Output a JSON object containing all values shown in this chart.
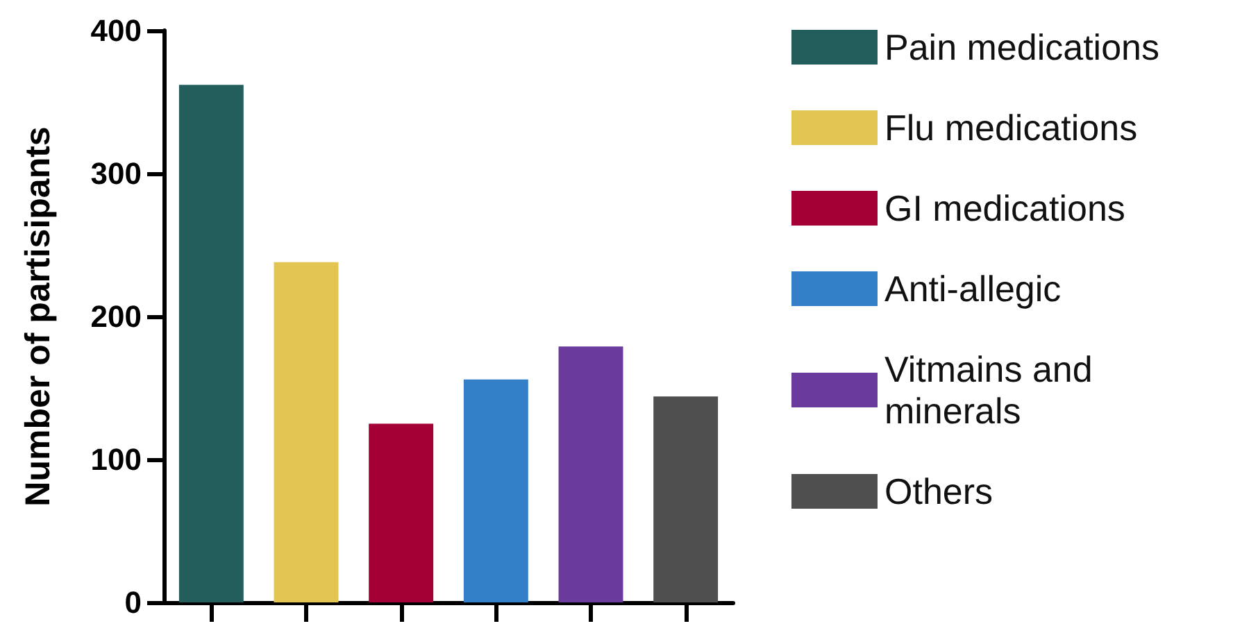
{
  "chart_data": {
    "type": "bar",
    "ylabel": "Number of partisipants",
    "categories": [
      null,
      null,
      null,
      null,
      null,
      null
    ],
    "series": [
      {
        "name": "Pain medications",
        "color": "#245e5c",
        "values": [
          362,
          null,
          null,
          null,
          null,
          null
        ]
      },
      {
        "name": "Flu medications",
        "color": "#e3c551",
        "values": [
          null,
          238,
          null,
          null,
          null,
          null
        ]
      },
      {
        "name": "GI medications",
        "color": "#a50036",
        "values": [
          null,
          null,
          125,
          null,
          null,
          null
        ]
      },
      {
        "name": "Anti-allegic",
        "color": "#3480c8",
        "values": [
          null,
          null,
          null,
          156,
          null,
          null
        ]
      },
      {
        "name": "Vitmains and minerals",
        "color": "#6a3a9c",
        "values": [
          null,
          null,
          null,
          null,
          179,
          null
        ]
      },
      {
        "name": "Others",
        "color": "#4f4f4f",
        "values": [
          null,
          null,
          null,
          null,
          null,
          144
        ]
      }
    ],
    "ylim": [
      0,
      400
    ],
    "yticks": [
      0,
      100,
      200,
      300,
      400
    ],
    "grid": false,
    "legend": "right"
  }
}
